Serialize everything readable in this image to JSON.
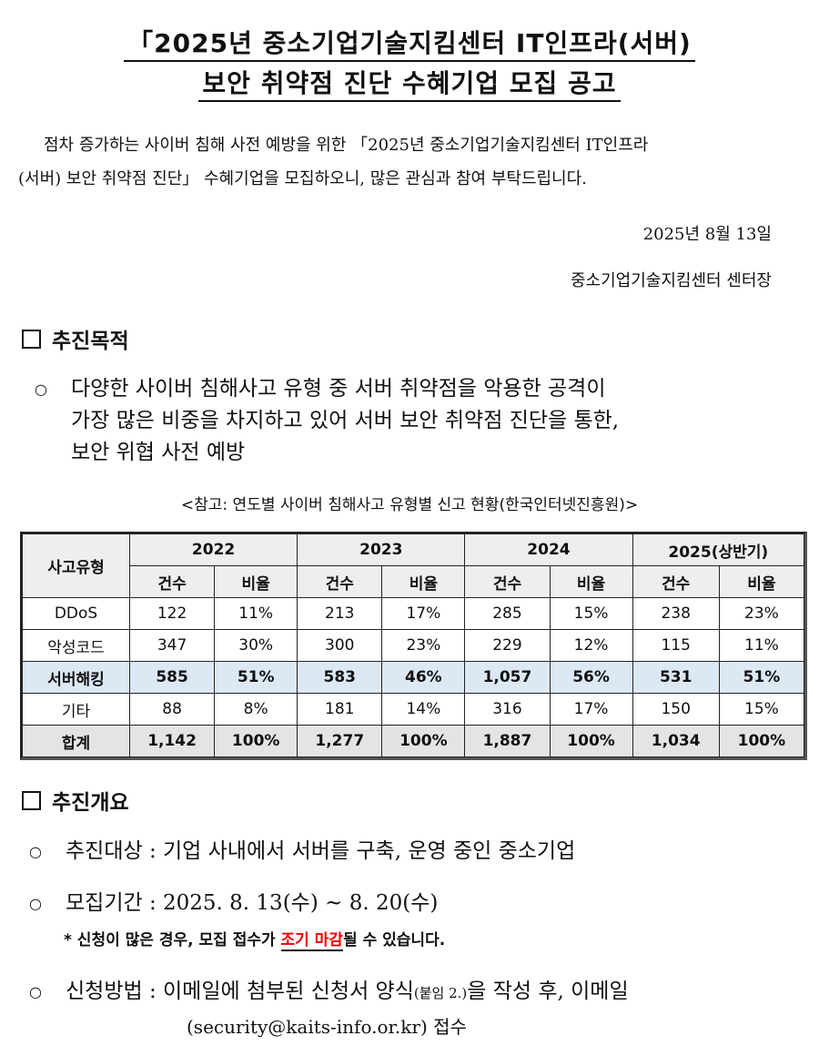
{
  "title": {
    "line1": "「2025년 중소기업기술지킴센터 IT인프라(서버)",
    "line2": "보안 취약점 진단 수혜기업 모집 공고"
  },
  "intro": {
    "line1": "점차 증가하는 사이버 침해 사전 예방을 위한 「2025년 중소기업기술지킴센터 IT인프라",
    "line2": "(서버) 보안 취약점 진단」 수혜기업을 모집하오니, 많은 관심과 참여 부탁드립니다."
  },
  "date": "2025년 8월 13일",
  "issuer": "중소기업기술지킴센터 센터장",
  "section1": {
    "heading": "추진목적",
    "bullet": [
      "다양한 사이버 침해사고 유형 중 서버 취약점을 악용한 공격이",
      "가장 많은 비중을 차지하고 있어 서버 보안 취약점 진단을 통한,",
      "보안 위협 사전 예방"
    ],
    "reference": "<참고: 연도별 사이버 침해사고 유형별 신고 현황(한국인터넷진흥원)>"
  },
  "table": {
    "corner": "사고유형",
    "years": [
      "2022",
      "2023",
      "2024",
      "2025(상반기)"
    ],
    "subheaders": [
      "건수",
      "비율"
    ],
    "rows": [
      {
        "type": "DDoS",
        "cells": [
          "122",
          "11%",
          "213",
          "17%",
          "285",
          "15%",
          "238",
          "23%"
        ]
      },
      {
        "type": "악성코드",
        "cells": [
          "347",
          "30%",
          "300",
          "23%",
          "229",
          "12%",
          "115",
          "11%"
        ]
      },
      {
        "type": "서버해킹",
        "cells": [
          "585",
          "51%",
          "583",
          "46%",
          "1,057",
          "56%",
          "531",
          "51%"
        ]
      },
      {
        "type": "기타",
        "cells": [
          "88",
          "8%",
          "181",
          "14%",
          "316",
          "17%",
          "150",
          "15%"
        ]
      },
      {
        "type": "합계",
        "cells": [
          "1,142",
          "100%",
          "1,277",
          "100%",
          "1,887",
          "100%",
          "1,034",
          "100%"
        ]
      }
    ],
    "highlight_color": "#dde8f5"
  },
  "section2": {
    "heading": "추진개요",
    "target": "추진대상 : 기업 사내에서 서버를 구축, 운영 중인 중소기업",
    "period": "모집기간 : 2025. 8. 13(수) ~ 8. 20(수)",
    "note_pre": "* 신청이 많은 경우, 모집 접수가 ",
    "note_red": "조기 마감",
    "note_post": "될 수 있습니다.",
    "method_line1_a": "신청방법 : 이메일에 첨부된 신청서 양식",
    "method_line1_small": "(붙임 2.)",
    "method_line1_b": "을 작성 후, 이메일",
    "method_line2": "(security@kaits-info.or.kr) 접수"
  }
}
